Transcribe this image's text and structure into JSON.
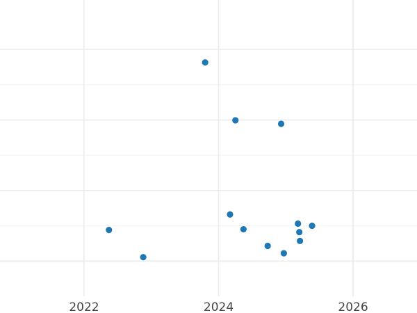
{
  "chart_data": {
    "type": "scatter",
    "title": "",
    "xlabel": "",
    "ylabel": "",
    "xlim": [
      2020.75,
      2026.95
    ],
    "ylim": [
      0,
      8.4
    ],
    "x_ticks": [
      {
        "value": 2022,
        "label": "2022"
      },
      {
        "value": 2024,
        "label": "2024"
      },
      {
        "value": 2026,
        "label": "2026"
      }
    ],
    "y_gridlines_major": [
      1,
      3,
      5,
      7
    ],
    "y_gridlines_minor": [
      2,
      4,
      6
    ],
    "grid": true,
    "point_color": "#1f77b4",
    "series": [
      {
        "points": [
          {
            "x": 2022.37,
            "y": 1.88
          },
          {
            "x": 2022.88,
            "y": 1.11
          },
          {
            "x": 2023.8,
            "y": 6.63
          },
          {
            "x": 2024.17,
            "y": 2.32
          },
          {
            "x": 2024.25,
            "y": 4.99
          },
          {
            "x": 2024.37,
            "y": 1.9
          },
          {
            "x": 2024.73,
            "y": 1.43
          },
          {
            "x": 2024.93,
            "y": 4.89
          },
          {
            "x": 2024.97,
            "y": 1.22
          },
          {
            "x": 2025.18,
            "y": 2.06
          },
          {
            "x": 2025.2,
            "y": 1.82
          },
          {
            "x": 2025.21,
            "y": 1.57
          },
          {
            "x": 2025.39,
            "y": 2.0
          }
        ]
      }
    ]
  }
}
